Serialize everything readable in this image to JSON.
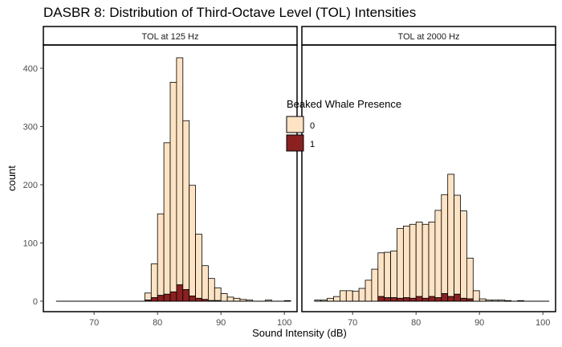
{
  "chart_data": {
    "type": "bar",
    "title": "DASBR 8: Distribution of Third-Octave Level (TOL) Intensities",
    "xlabel": "Sound Intensity (dB)",
    "ylabel": "count",
    "xlim": [
      62,
      102
    ],
    "ylim": [
      -18,
      440
    ],
    "xticks": [
      70,
      80,
      90,
      100
    ],
    "yticks": [
      0,
      100,
      200,
      300,
      400
    ],
    "bin_width": 1,
    "legend": {
      "title": "Beaked Whale Presence",
      "entries": [
        {
          "label": "0",
          "color": "#FDE3C4"
        },
        {
          "label": "1",
          "color": "#8B2020"
        }
      ],
      "placement": "inside-right"
    },
    "colors": {
      "absent": "#FDE3C4",
      "present": "#8B2020"
    },
    "panels": [
      {
        "strip": "TOL at 125 Hz",
        "bin_start": [
          64,
          65,
          66,
          67,
          68,
          69,
          70,
          71,
          72,
          73,
          74,
          75,
          76,
          77,
          78,
          79,
          80,
          81,
          82,
          83,
          84,
          85,
          86,
          87,
          88,
          89,
          90,
          91,
          92,
          93,
          94,
          95,
          96,
          97,
          98,
          99,
          100
        ],
        "absent": [
          0,
          0,
          0,
          0,
          0,
          0,
          0,
          0,
          0,
          0,
          0,
          0,
          0,
          0,
          12,
          58,
          140,
          260,
          360,
          390,
          290,
          190,
          110,
          58,
          38,
          22,
          13,
          7,
          5,
          3,
          2,
          0,
          0,
          2,
          0,
          0,
          1
        ],
        "present": [
          0,
          0,
          0,
          0,
          0,
          0,
          0,
          0,
          0,
          0,
          0,
          0,
          0,
          0,
          2,
          6,
          10,
          12,
          16,
          28,
          20,
          9,
          5,
          3,
          1,
          1,
          0,
          0,
          0,
          0,
          0,
          0,
          0,
          0,
          0,
          0,
          0
        ]
      },
      {
        "strip": "TOL at 2000 Hz",
        "bin_start": [
          64,
          65,
          66,
          67,
          68,
          69,
          70,
          71,
          72,
          73,
          74,
          75,
          76,
          77,
          78,
          79,
          80,
          81,
          82,
          83,
          84,
          85,
          86,
          87,
          88,
          89,
          90,
          91,
          92,
          93,
          94,
          95,
          96,
          97,
          98,
          99,
          100
        ],
        "absent": [
          2,
          2,
          5,
          8,
          18,
          18,
          17,
          22,
          36,
          55,
          75,
          78,
          80,
          120,
          123,
          127,
          128,
          127,
          128,
          150,
          170,
          210,
          170,
          150,
          70,
          18,
          4,
          2,
          2,
          2,
          1,
          0,
          1,
          0,
          0,
          0,
          0
        ],
        "present": [
          0,
          0,
          0,
          0,
          0,
          0,
          0,
          0,
          0,
          0,
          8,
          6,
          6,
          5,
          6,
          5,
          8,
          5,
          8,
          6,
          13,
          8,
          12,
          5,
          4,
          0,
          0,
          0,
          0,
          0,
          0,
          0,
          0,
          0,
          0,
          0,
          0
        ]
      }
    ]
  }
}
